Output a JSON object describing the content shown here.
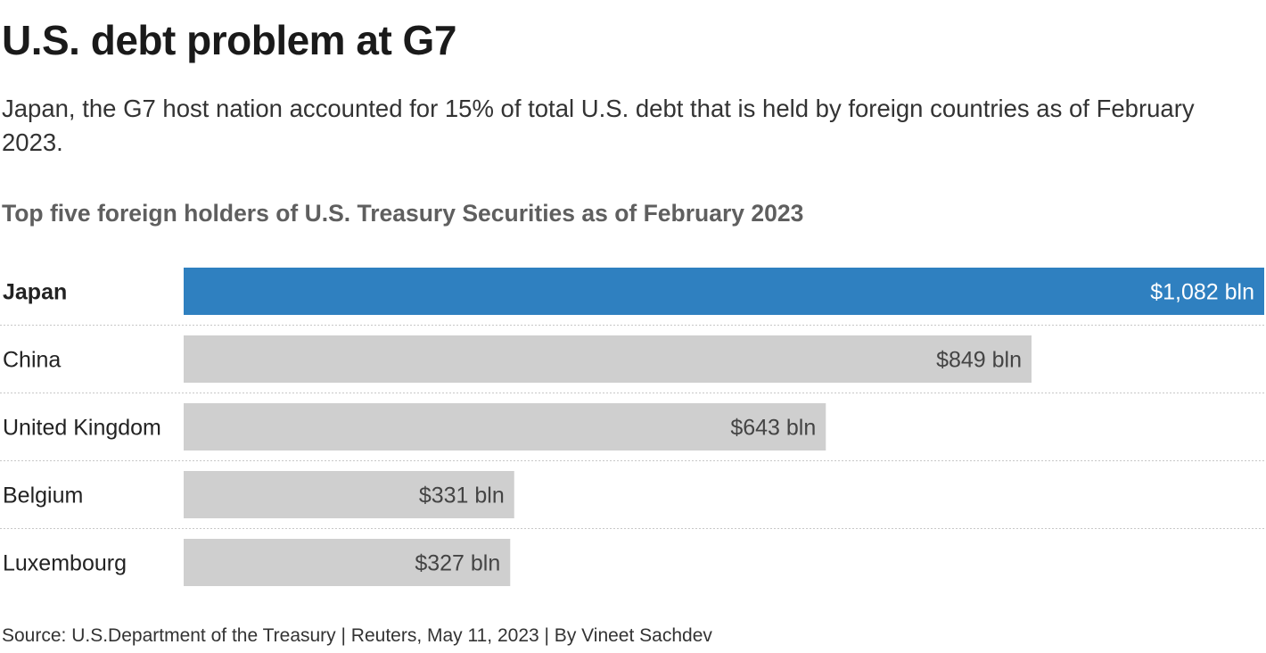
{
  "title": "U.S. debt problem at G7",
  "subtitle": "Japan, the G7 host nation accounted for 15% of total U.S. debt that is held by foreign countries as of February 2023.",
  "footer": "Source: U.S.Department of the Treasury | Reuters, May 11, 2023 | By Vineet Sachdev",
  "colors": {
    "highlight": "#2f80c0",
    "bar": "#cfcfcf",
    "highlight_label": "#ffffff",
    "bar_label": "#444444"
  },
  "chart_data": {
    "type": "bar",
    "orientation": "horizontal",
    "title": "Top five foreign holders of U.S. Treasury Securities as of February 2023",
    "categories": [
      "Japan",
      "China",
      "United Kingdom",
      "Belgium",
      "Luxembourg"
    ],
    "values": [
      1082,
      849,
      643,
      331,
      327
    ],
    "value_labels": [
      "$1,082 bln",
      "$849 bln",
      "$643 bln",
      "$331 bln",
      "$327 bln"
    ],
    "unit": "bln USD",
    "highlight": "Japan",
    "xlim": [
      0,
      1082
    ],
    "grid": false
  }
}
